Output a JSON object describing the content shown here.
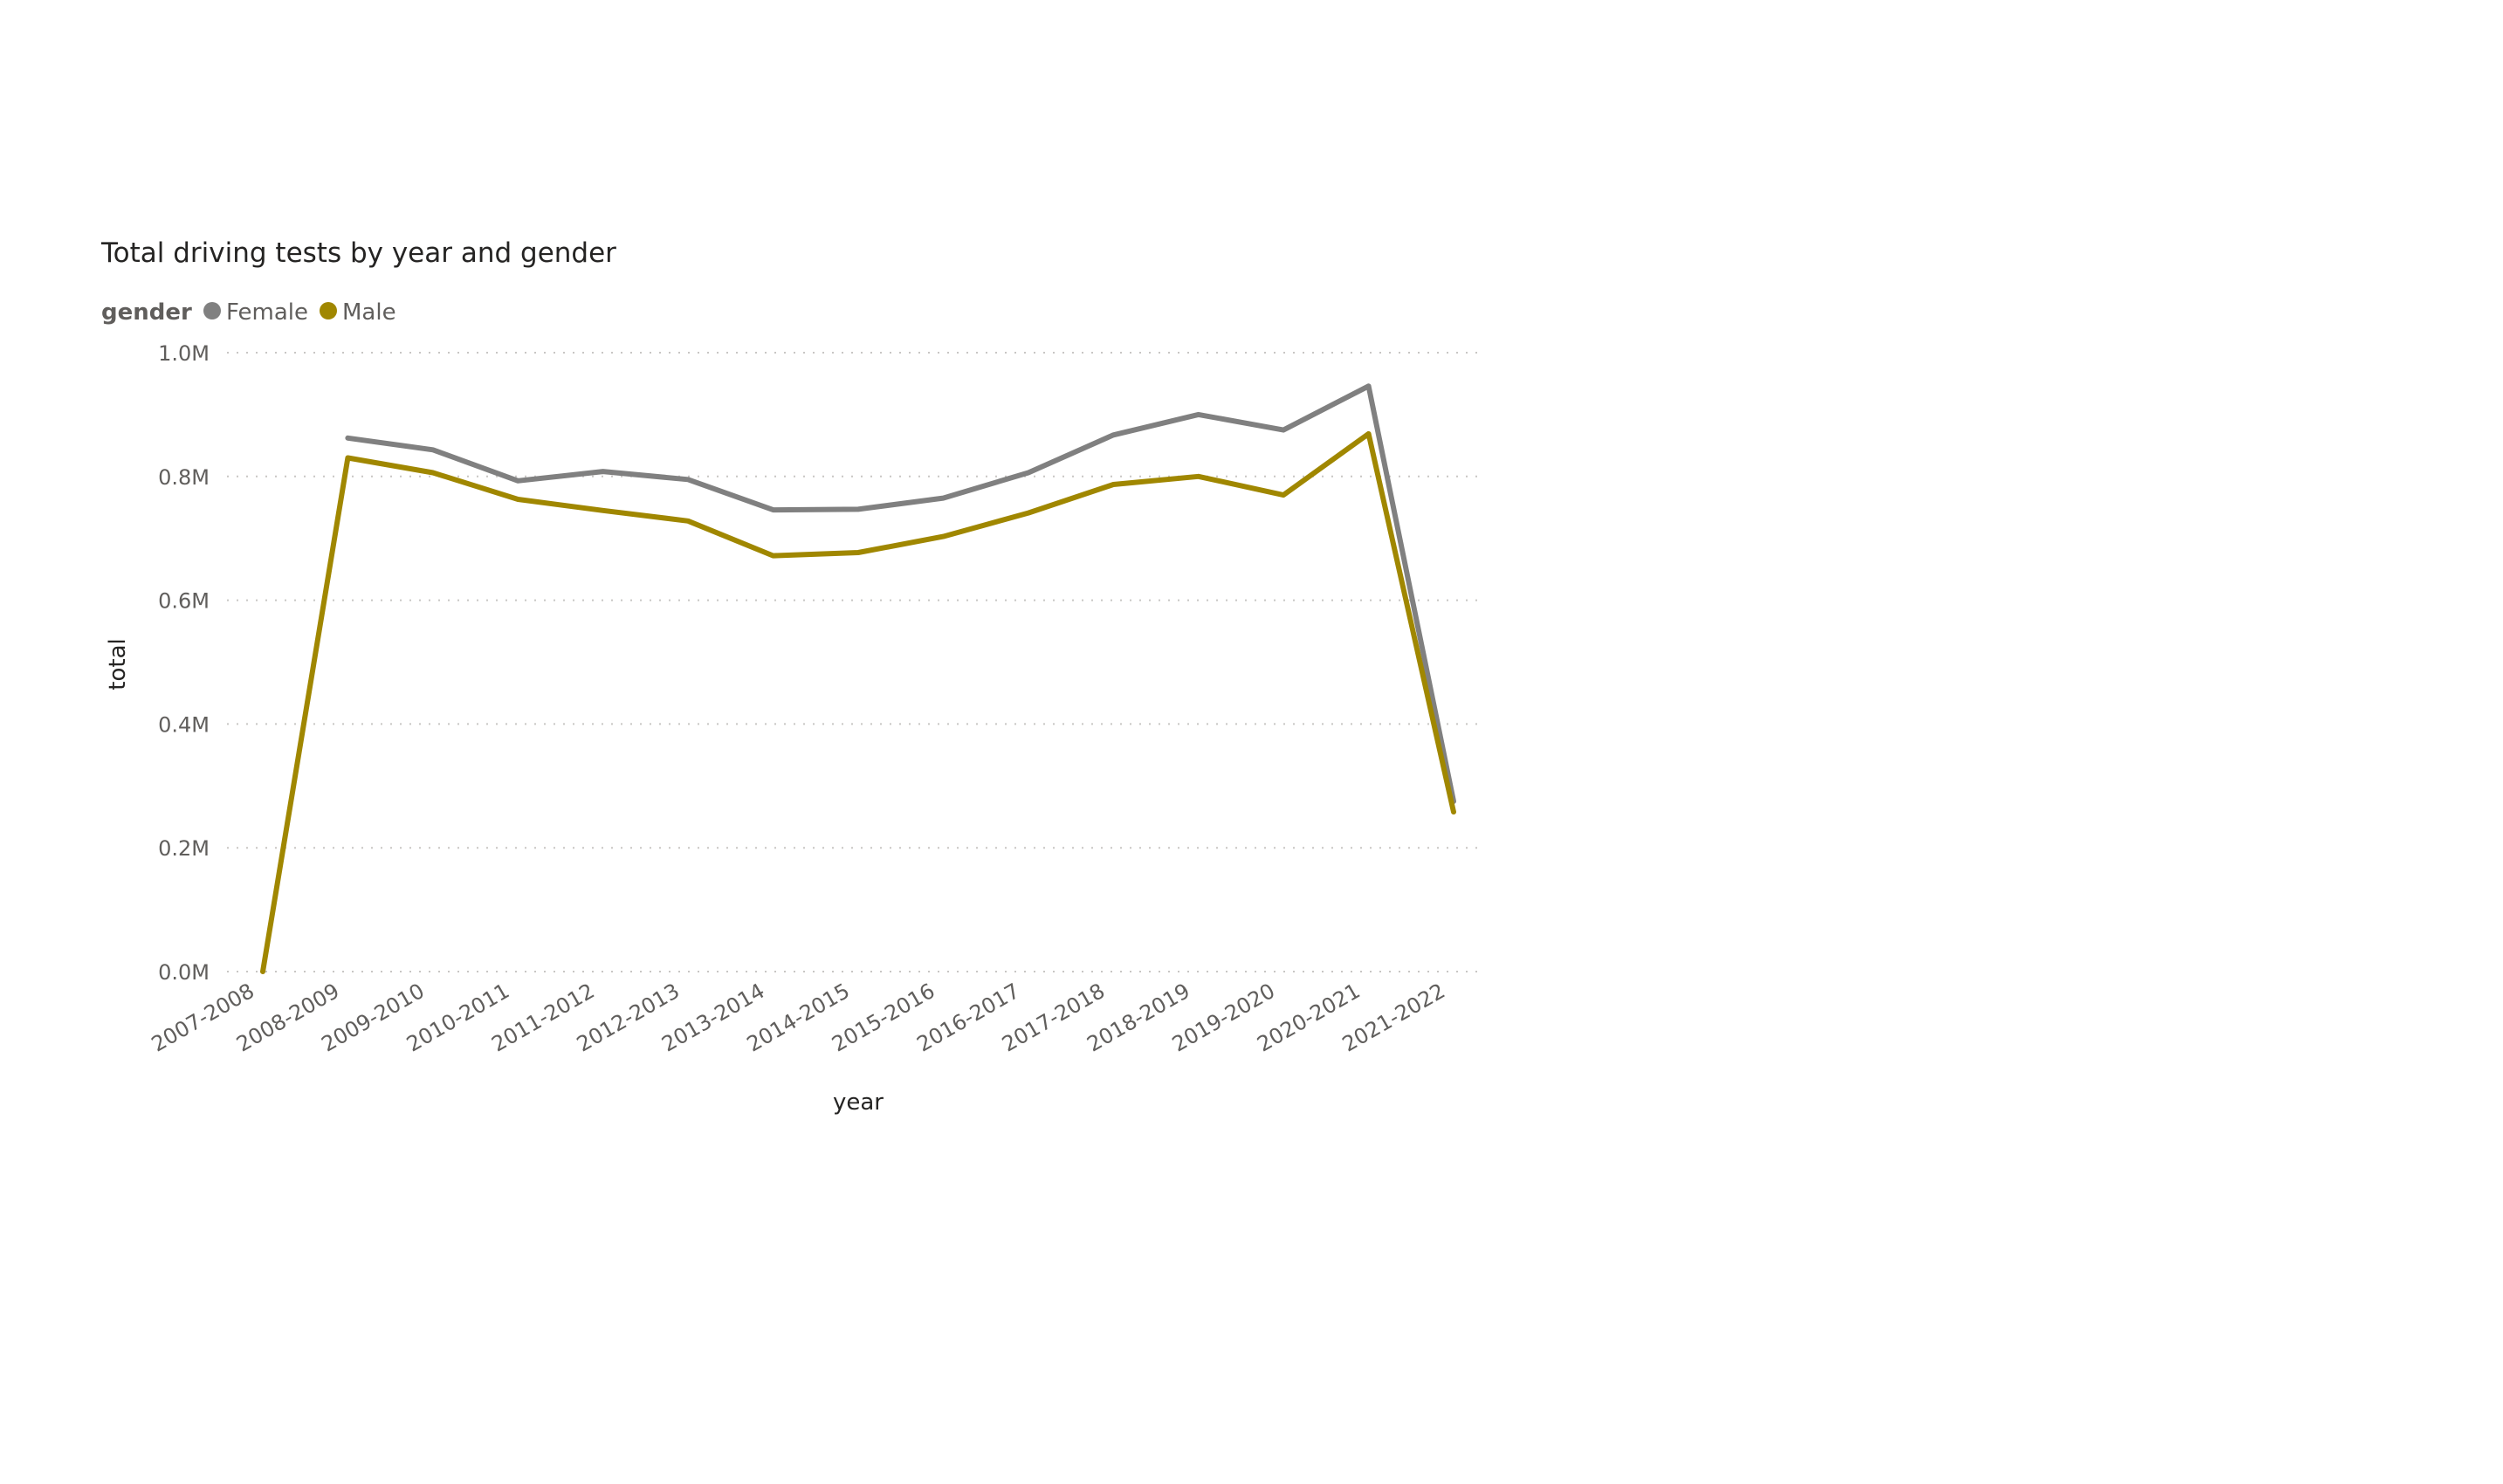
{
  "chart_data": {
    "type": "line",
    "title": "Total driving tests by year and gender",
    "legend_title": "gender",
    "legend_position": "top-left",
    "xlabel": "year",
    "ylabel": "total",
    "ylim": [
      0,
      1000000
    ],
    "yticks": [
      0,
      200000,
      400000,
      600000,
      800000,
      1000000
    ],
    "ytick_labels": [
      "0.0M",
      "0.2M",
      "0.4M",
      "0.6M",
      "0.8M",
      "1.0M"
    ],
    "grid": "horizontal dotted",
    "categories": [
      "2007-2008",
      "2008-2009",
      "2009-2010",
      "2010-2011",
      "2011-2012",
      "2012-2013",
      "2013-2014",
      "2014-2015",
      "2015-2016",
      "2016-2017",
      "2017-2018",
      "2018-2019",
      "2019-2020",
      "2020-2021",
      "2021-2022"
    ],
    "series": [
      {
        "name": "Female",
        "color": "#808080",
        "values": [
          null,
          862000,
          843000,
          793000,
          808000,
          795000,
          746000,
          747000,
          765000,
          806000,
          867000,
          900000,
          875000,
          946000,
          275000
        ]
      },
      {
        "name": "Male",
        "color": "#a08700",
        "values": [
          0,
          830000,
          806000,
          763000,
          745000,
          728000,
          672000,
          677000,
          703000,
          741000,
          787000,
          800000,
          770000,
          869000,
          258000
        ]
      }
    ]
  }
}
